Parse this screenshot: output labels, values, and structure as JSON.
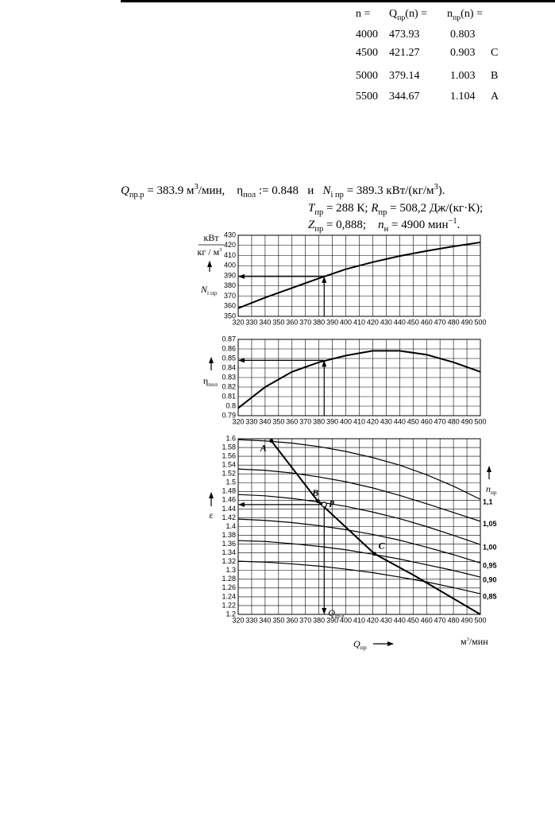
{
  "table": {
    "header": [
      [
        {
          "text": "n ="
        }
      ],
      [
        {
          "text": "Q"
        },
        {
          "text": "пр",
          "style": "sub"
        },
        {
          "text": "(n) ="
        }
      ],
      [
        {
          "text": "n"
        },
        {
          "text": "пр",
          "style": "sub"
        },
        {
          "text": "(n) ="
        }
      ]
    ],
    "rows": [
      [
        4000,
        473.93,
        0.803
      ],
      [
        4500,
        421.27,
        0.903,
        "C"
      ],
      [
        5000,
        379.14,
        1.003,
        "B"
      ],
      [
        5500,
        344.67,
        1.104,
        "A"
      ]
    ]
  },
  "formulas": [
    [
      {
        "text": "Q",
        "style": "it"
      },
      {
        "text": "пр.р",
        "style": "sub"
      },
      {
        "text": " = 383.9 м"
      },
      {
        "text": "3",
        "style": "sup"
      },
      {
        "text": "/мин,    η"
      },
      {
        "text": "пол",
        "style": "sub"
      },
      {
        "text": " := 0.848   и   "
      },
      {
        "text": "N",
        "style": "it"
      },
      {
        "text": "i пр",
        "style": "sub"
      },
      {
        "text": " = 389.3 кВт/(кг/м"
      },
      {
        "text": "3",
        "style": "sup"
      },
      {
        "text": ")."
      }
    ],
    [
      {
        "text": "T",
        "style": "it"
      },
      {
        "text": "пр",
        "style": "sub"
      },
      {
        "text": " = 288 К; "
      },
      {
        "text": "R",
        "style": "it"
      },
      {
        "text": "пр",
        "style": "sub"
      },
      {
        "text": " = 508,2 Дж/(кг·К);"
      }
    ],
    [
      {
        "text": "Z",
        "style": "it"
      },
      {
        "text": "пр",
        "style": "sub"
      },
      {
        "text": " = 0,888;    "
      },
      {
        "text": "n",
        "style": "it"
      },
      {
        "text": "н",
        "style": "sub"
      },
      {
        "text": " = 4900 мин"
      },
      {
        "text": "−1",
        "style": "sup"
      },
      {
        "text": "."
      }
    ]
  ],
  "chart_data": [
    {
      "type": "line",
      "unit_top": "кВт",
      "unit_bottom": [
        {
          "text": "кг / м"
        },
        {
          "text": "3",
          "style": "sup"
        }
      ],
      "ylabel": [
        {
          "text": "N",
          "style": "it"
        },
        {
          "text": "i пр",
          "style": "sub"
        }
      ],
      "x": [
        320,
        340,
        360,
        380,
        400,
        420,
        440,
        460,
        480,
        500
      ],
      "series": [
        {
          "color": "#000000",
          "values": [
            358,
            368.5,
            378,
            387.5,
            396.5,
            403.5,
            409.5,
            414.5,
            419,
            423
          ]
        }
      ],
      "reference": {
        "x": 383.9,
        "y": 389.3
      },
      "xlim": [
        320,
        500
      ],
      "xticks": [
        320,
        330,
        340,
        350,
        360,
        370,
        380,
        390,
        400,
        410,
        420,
        430,
        440,
        450,
        460,
        470,
        480,
        490,
        500
      ],
      "ylim": [
        350,
        430
      ],
      "yticks": [
        350,
        360,
        370,
        380,
        390,
        400,
        410,
        420,
        430
      ],
      "grid": true
    },
    {
      "type": "line",
      "ylabel": [
        {
          "text": "η"
        },
        {
          "text": "пол",
          "style": "sub"
        }
      ],
      "x": [
        320,
        340,
        360,
        380,
        400,
        420,
        440,
        460,
        480,
        500
      ],
      "series": [
        {
          "color": "#000000",
          "values": [
            0.798,
            0.82,
            0.836,
            0.846,
            0.853,
            0.858,
            0.858,
            0.854,
            0.846,
            0.836
          ]
        }
      ],
      "reference": {
        "x": 383.9,
        "y": 0.848
      },
      "xlim": [
        320,
        500
      ],
      "xticks": [
        320,
        330,
        340,
        350,
        360,
        370,
        380,
        390,
        400,
        410,
        420,
        430,
        440,
        450,
        460,
        470,
        480,
        490,
        500
      ],
      "ylim": [
        0.79,
        0.87
      ],
      "yticks": [
        0.79,
        0.8,
        0.81,
        0.82,
        0.83,
        0.84,
        0.85,
        0.86,
        0.87
      ],
      "grid": true
    },
    {
      "type": "line",
      "ylabel": [
        {
          "text": "ε"
        }
      ],
      "xlabel": [
        {
          "text": "Q",
          "style": "it"
        },
        {
          "text": "пр",
          "style": "sub"
        }
      ],
      "xunit": [
        {
          "text": "м"
        },
        {
          "text": "3",
          "style": "sup"
        },
        {
          "text": "/мин"
        }
      ],
      "legend_title": [
        {
          "text": "n",
          "style": "it"
        },
        {
          "text": "пр",
          "style": "sub"
        }
      ],
      "x": [
        320,
        340,
        360,
        380,
        400,
        420,
        440,
        460,
        480,
        500
      ],
      "series": [
        {
          "name": "1,1",
          "color": "#000000",
          "values": [
            1.598,
            1.595,
            1.59,
            1.582,
            1.571,
            1.557,
            1.54,
            1.518,
            1.492,
            1.462
          ]
        },
        {
          "name": "1,05",
          "color": "#000000",
          "values": [
            1.531,
            1.528,
            1.522,
            1.513,
            1.502,
            1.488,
            1.471,
            1.452,
            1.432,
            1.412
          ]
        },
        {
          "name": "1,00",
          "color": "#000000",
          "values": [
            1.473,
            1.47,
            1.464,
            1.456,
            1.446,
            1.433,
            1.418,
            1.4,
            1.38,
            1.359
          ]
        },
        {
          "name": "0,95",
          "color": "#000000",
          "values": [
            1.417,
            1.414,
            1.409,
            1.402,
            1.393,
            1.382,
            1.369,
            1.353,
            1.336,
            1.317
          ]
        },
        {
          "name": "0,90",
          "color": "#000000",
          "values": [
            1.368,
            1.366,
            1.361,
            1.355,
            1.347,
            1.337,
            1.326,
            1.313,
            1.3,
            1.285
          ]
        },
        {
          "name": "0,85",
          "color": "#000000",
          "values": [
            1.321,
            1.319,
            1.315,
            1.31,
            1.303,
            1.295,
            1.285,
            1.274,
            1.261,
            1.247
          ]
        }
      ],
      "operating_line": {
        "x": [
          344.67,
          379.14,
          421.27,
          450,
          500
        ],
        "values": [
          1.595,
          1.458,
          1.338,
          1.29,
          1.2
        ]
      },
      "points": [
        {
          "label": "A",
          "x": 344.67,
          "y": 1.595
        },
        {
          "label": "B",
          "x": 379.14,
          "y": 1.458
        },
        {
          "label": "C",
          "x": 421.27,
          "y": 1.338
        }
      ],
      "reference": {
        "x": 383.9,
        "y": 1.45,
        "label": "p"
      },
      "reference_label": [
        {
          "text": "Q",
          "style": "it"
        },
        {
          "text": "пр.р",
          "style": "sub"
        }
      ],
      "xlim": [
        320,
        500
      ],
      "xticks": [
        320,
        330,
        340,
        350,
        360,
        370,
        380,
        390,
        400,
        410,
        420,
        430,
        440,
        450,
        460,
        470,
        480,
        490,
        500
      ],
      "ylim": [
        1.2,
        1.6
      ],
      "yticks": [
        1.2,
        1.22,
        1.24,
        1.26,
        1.28,
        1.3,
        1.32,
        1.34,
        1.36,
        1.38,
        1.4,
        1.42,
        1.44,
        1.46,
        1.48,
        1.5,
        1.52,
        1.54,
        1.56,
        1.58,
        1.6
      ],
      "grid": true
    }
  ]
}
